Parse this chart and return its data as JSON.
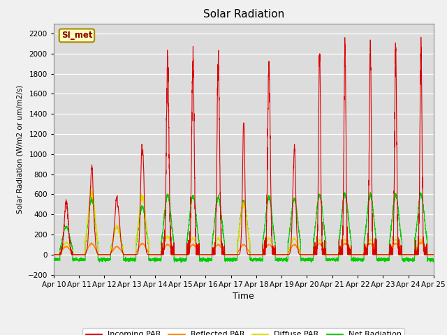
{
  "title": "Solar Radiation",
  "ylabel": "Solar Radiation (W/m2 or um/m2/s)",
  "xlabel": "Time",
  "ylim": [
    -200,
    2300
  ],
  "yticks": [
    -200,
    0,
    200,
    400,
    600,
    800,
    1000,
    1200,
    1400,
    1600,
    1800,
    2000,
    2200
  ],
  "x_labels": [
    "Apr 10",
    "Apr 11",
    "Apr 12",
    "Apr 13",
    "Apr 14",
    "Apr 15",
    "Apr 16",
    "Apr 17",
    "Apr 18",
    "Apr 19",
    "Apr 20",
    "Apr 21",
    "Apr 22",
    "Apr 23",
    "Apr 24",
    "Apr 25"
  ],
  "watermark": "SI_met",
  "colors": {
    "incoming": "#dd0000",
    "reflected": "#ff8800",
    "diffuse": "#dddd00",
    "net": "#00cc00"
  },
  "legend": [
    "Incoming PAR",
    "Reflected PAR",
    "Diffuse PAR",
    "Net Radiation"
  ],
  "fig_bg": "#f0f0f0",
  "plot_bg": "#dcdcdc"
}
